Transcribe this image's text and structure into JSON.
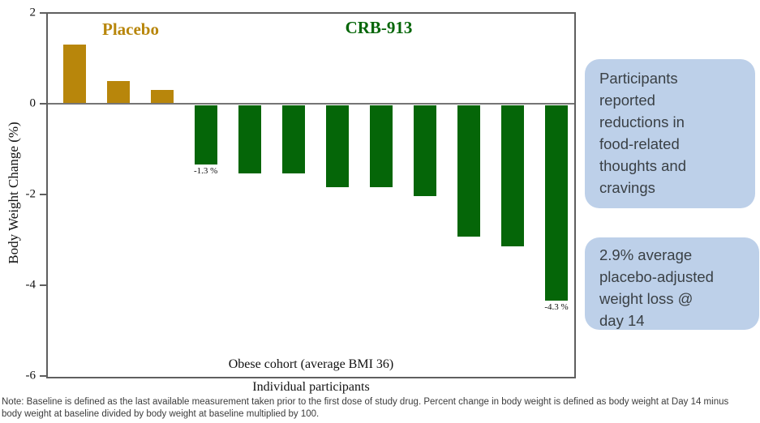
{
  "chart_data": {
    "type": "bar",
    "title": "",
    "xlabel": "Individual participants",
    "ylabel": "Body Weight Change (%)",
    "ylim": [
      -6,
      2
    ],
    "yticks": [
      2,
      0,
      -2,
      -4,
      -6
    ],
    "grid": false,
    "inner_caption": "Obese cohort (average BMI 36)",
    "categories": [
      "Placebo participant 1",
      "Placebo participant 2",
      "Placebo participant 3",
      "CRB-913 participant 1",
      "CRB-913 participant 2",
      "CRB-913 participant 3",
      "CRB-913 participant 4",
      "CRB-913 participant 5",
      "CRB-913 participant 6",
      "CRB-913 participant 7",
      "CRB-913 participant 8",
      "CRB-913 participant 9"
    ],
    "groups": [
      {
        "name": "Placebo",
        "color": "#b8860b",
        "values": [
          1.3,
          0.5,
          0.3
        ]
      },
      {
        "name": "CRB-913",
        "color": "#056608",
        "values": [
          -1.3,
          -1.5,
          -1.5,
          -1.8,
          -1.8,
          -2.0,
          -2.9,
          -3.1,
          -4.3
        ]
      }
    ],
    "bar_value_labels": [
      {
        "bar_index": 3,
        "text": "-1.3 %"
      },
      {
        "bar_index": 11,
        "text": "-4.3 %"
      }
    ]
  },
  "annotations": [
    {
      "text": "Participants\nreported\nreductions in\nfood-related\nthoughts and\ncravings"
    },
    {
      "text": "2.9% average\nplacebo-adjusted\nweight loss @\nday 14"
    }
  ],
  "footnote": "Note: Baseline is defined as the last available measurement taken prior to the first dose of study drug. Percent change in body weight is defined as body weight at Day 14 minus\nbody weight at baseline divided by body weight at baseline multiplied by 100.",
  "colors": {
    "placebo_bar": "#b8860b",
    "crb913_bar": "#056608",
    "callout_bg": "#bdd0e9",
    "axis": "#5f5f5f",
    "zero_line": "#757575"
  }
}
